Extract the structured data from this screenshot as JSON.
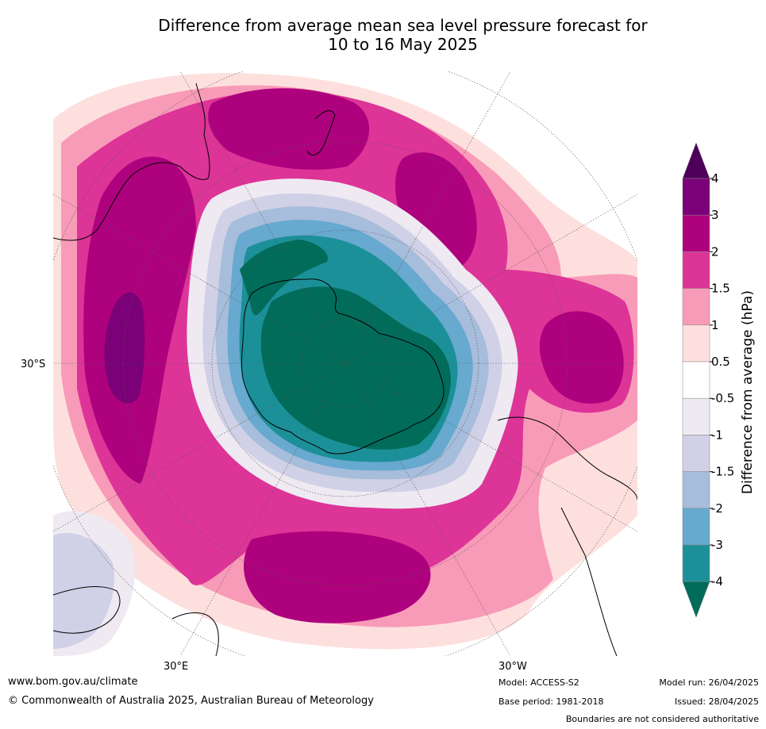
{
  "title": {
    "line1": "Difference from average mean sea level pressure forecast for",
    "line2": "10 to 16 May 2025"
  },
  "map": {
    "projection": "south polar stereographic",
    "lat_labels": [
      "30°S"
    ],
    "lon_labels": [
      "30°E",
      "30°W"
    ]
  },
  "colorbar": {
    "label": "Difference from average (hPa)",
    "ticks": [
      "4",
      "3",
      "2",
      "1.5",
      "1",
      "0.5",
      "-0.5",
      "-1",
      "-1.5",
      "-2",
      "-3",
      "-4"
    ],
    "bins": [
      {
        "range": "> 4",
        "color": "#4d005a"
      },
      {
        "range": "3 to 4",
        "color": "#7a0177"
      },
      {
        "range": "2 to 3",
        "color": "#ae017e"
      },
      {
        "range": "1.5 to 2",
        "color": "#dd3497"
      },
      {
        "range": "1 to 1.5",
        "color": "#f89bb8"
      },
      {
        "range": "0.5 to 1",
        "color": "#fde0dd"
      },
      {
        "range": "-0.5 to 0.5",
        "color": "#ffffff"
      },
      {
        "range": "-1 to -0.5",
        "color": "#efe9f2"
      },
      {
        "range": "-1.5 to -1",
        "color": "#d0d1e6"
      },
      {
        "range": "-2 to -1.5",
        "color": "#a6bddb"
      },
      {
        "range": "-3 to -2",
        "color": "#67a9cf"
      },
      {
        "range": "-4 to -3",
        "color": "#1c9099"
      },
      {
        "range": "< -4",
        "color": "#016c59"
      }
    ]
  },
  "footer": {
    "website": "www.bom.gov.au/climate",
    "copyright": "© Commonwealth of Australia 2025, Australian Bureau of Meteorology",
    "model": "Model: ACCESS-S2",
    "base_period": "Base period: 1981-2018",
    "model_run": "Model run: 26/04/2025",
    "issued": "Issued: 28/04/2025",
    "disclaimer": "Boundaries are not considered authoritative"
  }
}
